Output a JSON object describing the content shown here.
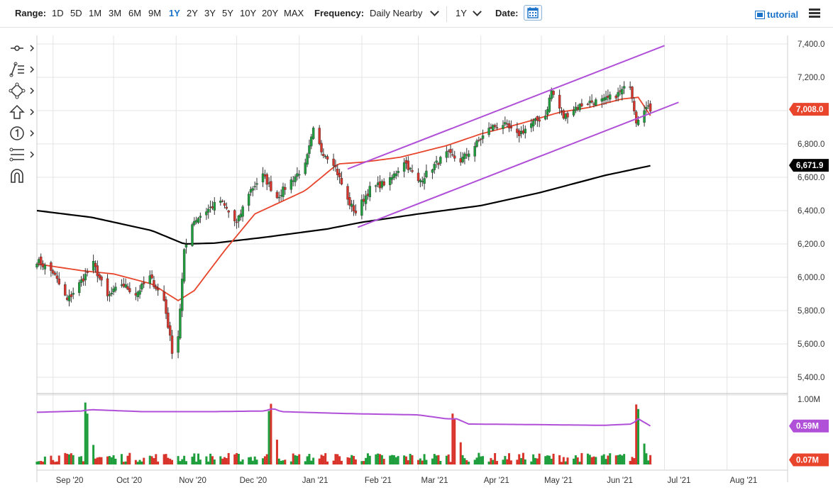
{
  "toolbar": {
    "range_label": "Range:",
    "ranges": [
      "1D",
      "5D",
      "1M",
      "3M",
      "6M",
      "9M",
      "1Y",
      "2Y",
      "3Y",
      "5Y",
      "10Y",
      "20Y",
      "MAX"
    ],
    "active_range": "1Y",
    "frequency_label": "Frequency:",
    "frequency_value": "Daily Nearby",
    "period_value": "1Y",
    "date_label": "Date:",
    "tutorial_label": "tutorial"
  },
  "sidebar": {
    "tools": [
      "crosshair-icon",
      "line-tools-icon",
      "shapes-icon",
      "arrow-up-icon",
      "annotation-number-icon",
      "fibonacci-icon",
      "magnet-icon"
    ]
  },
  "colors": {
    "up": "#1e9e3c",
    "down": "#d9342b",
    "ma50": "#e8452c",
    "ma200": "#000000",
    "channel": "#b04fd8",
    "accent": "#1a73c9",
    "volume_avg": "#b04fd8"
  },
  "chart_data": {
    "type": "candlestick",
    "title": "",
    "ylim": [
      5350,
      7450
    ],
    "yticks": [
      "7,400.0",
      "7,200.0",
      "7,000.0",
      "6,800.0",
      "6,600.0",
      "6,400.0",
      "6,200.0",
      "6,000.0",
      "5,800.0",
      "5,600.0",
      "5,400.0"
    ],
    "xticks": [
      "Sep '20",
      "Oct '20",
      "Nov '20",
      "Dec '20",
      "Jan '21",
      "Feb '21",
      "Mar '21",
      "Apr '21",
      "May '21",
      "Jun '21",
      "Jul '21",
      "Aug '21"
    ],
    "last_price_tag": "7,008.0",
    "ma200_tag": "6,671.9",
    "ohlc_anchors": {
      "dates": [
        "2020-08-24",
        "2020-09-01",
        "2020-09-08",
        "2020-09-14",
        "2020-09-21",
        "2020-09-28",
        "2020-10-05",
        "2020-10-12",
        "2020-10-19",
        "2020-10-26",
        "2020-10-30",
        "2020-11-02",
        "2020-11-05",
        "2020-11-09",
        "2020-11-16",
        "2020-11-23",
        "2020-12-01",
        "2020-12-07",
        "2020-12-14",
        "2020-12-21",
        "2020-12-28",
        "2021-01-04",
        "2021-01-08",
        "2021-01-12",
        "2021-01-18",
        "2021-01-25",
        "2021-01-29",
        "2021-02-05",
        "2021-02-15",
        "2021-02-22",
        "2021-03-01",
        "2021-03-08",
        "2021-03-15",
        "2021-03-22",
        "2021-03-29",
        "2021-04-06",
        "2021-04-12",
        "2021-04-19",
        "2021-04-26",
        "2021-05-03",
        "2021-05-06",
        "2021-05-12",
        "2021-05-18",
        "2021-05-24",
        "2021-06-01",
        "2021-06-08",
        "2021-06-14",
        "2021-06-17",
        "2021-06-21",
        "2021-06-24"
      ],
      "closes": [
        6100,
        6030,
        5860,
        5960,
        6080,
        5880,
        5960,
        5900,
        6000,
        5860,
        5560,
        5650,
        6150,
        6330,
        6400,
        6460,
        6320,
        6510,
        6610,
        6480,
        6580,
        6670,
        6880,
        6760,
        6690,
        6460,
        6390,
        6530,
        6580,
        6700,
        6570,
        6660,
        6740,
        6700,
        6790,
        6900,
        6920,
        6850,
        6920,
        6970,
        7120,
        6960,
        7020,
        7050,
        7060,
        7100,
        7160,
        6940,
        7020,
        7008
      ]
    },
    "ma50": {
      "dates": [
        "2020-08-24",
        "2020-09-15",
        "2020-10-01",
        "2020-10-20",
        "2020-11-02",
        "2020-11-10",
        "2020-11-25",
        "2020-12-10",
        "2021-01-04",
        "2021-01-20",
        "2021-02-01",
        "2021-02-20",
        "2021-03-15",
        "2021-04-01",
        "2021-04-20",
        "2021-05-10",
        "2021-05-25",
        "2021-06-10",
        "2021-06-18",
        "2021-06-24"
      ],
      "values": [
        6080,
        6040,
        6020,
        5960,
        5860,
        5920,
        6160,
        6380,
        6520,
        6680,
        6690,
        6720,
        6790,
        6860,
        6920,
        6990,
        7020,
        7070,
        7080,
        6970
      ]
    },
    "ma200": {
      "dates": [
        "2020-08-24",
        "2020-09-20",
        "2020-10-20",
        "2020-11-05",
        "2020-11-20",
        "2020-12-15",
        "2021-01-15",
        "2021-02-01",
        "2021-03-01",
        "2021-04-01",
        "2021-05-01",
        "2021-06-01",
        "2021-06-25"
      ],
      "values": [
        6400,
        6360,
        6280,
        6200,
        6205,
        6240,
        6290,
        6330,
        6380,
        6430,
        6510,
        6610,
        6672
      ]
    },
    "channel": {
      "upper": {
        "x": [
          "2021-01-25",
          "2021-07-01"
        ],
        "y": [
          6650,
          7390
        ]
      },
      "lower": {
        "x": [
          "2021-01-30",
          "2021-07-08"
        ],
        "y": [
          6300,
          7050
        ]
      }
    },
    "volume": {
      "ylim_label": "1.00M",
      "avg_tag": "0.59M",
      "last_tag": "0.07M",
      "spikes": [
        {
          "date": "2020-09-17",
          "value": 0.95
        },
        {
          "date": "2020-09-18",
          "value": 0.78
        },
        {
          "date": "2020-09-21",
          "value": 0.3
        },
        {
          "date": "2020-12-17",
          "value": 0.82
        },
        {
          "date": "2020-12-18",
          "value": 0.93
        },
        {
          "date": "2020-12-21",
          "value": 0.38
        },
        {
          "date": "2021-03-18",
          "value": 0.78
        },
        {
          "date": "2021-03-19",
          "value": 0.7
        },
        {
          "date": "2021-03-22",
          "value": 0.34
        },
        {
          "date": "2021-06-17",
          "value": 0.92
        },
        {
          "date": "2021-06-18",
          "value": 0.85
        },
        {
          "date": "2021-06-21",
          "value": 0.32
        }
      ],
      "avg_line": {
        "dates": [
          "2020-08-24",
          "2020-09-15",
          "2020-09-20",
          "2020-10-15",
          "2020-11-20",
          "2020-12-15",
          "2020-12-19",
          "2020-12-23",
          "2021-01-25",
          "2021-03-01",
          "2021-03-15",
          "2021-03-20",
          "2021-03-26",
          "2021-05-01",
          "2021-06-01",
          "2021-06-15",
          "2021-06-18",
          "2021-06-24"
        ],
        "values": [
          0.8,
          0.82,
          0.84,
          0.81,
          0.81,
          0.82,
          0.86,
          0.81,
          0.78,
          0.76,
          0.7,
          0.7,
          0.62,
          0.61,
          0.6,
          0.62,
          0.7,
          0.59
        ]
      }
    }
  }
}
